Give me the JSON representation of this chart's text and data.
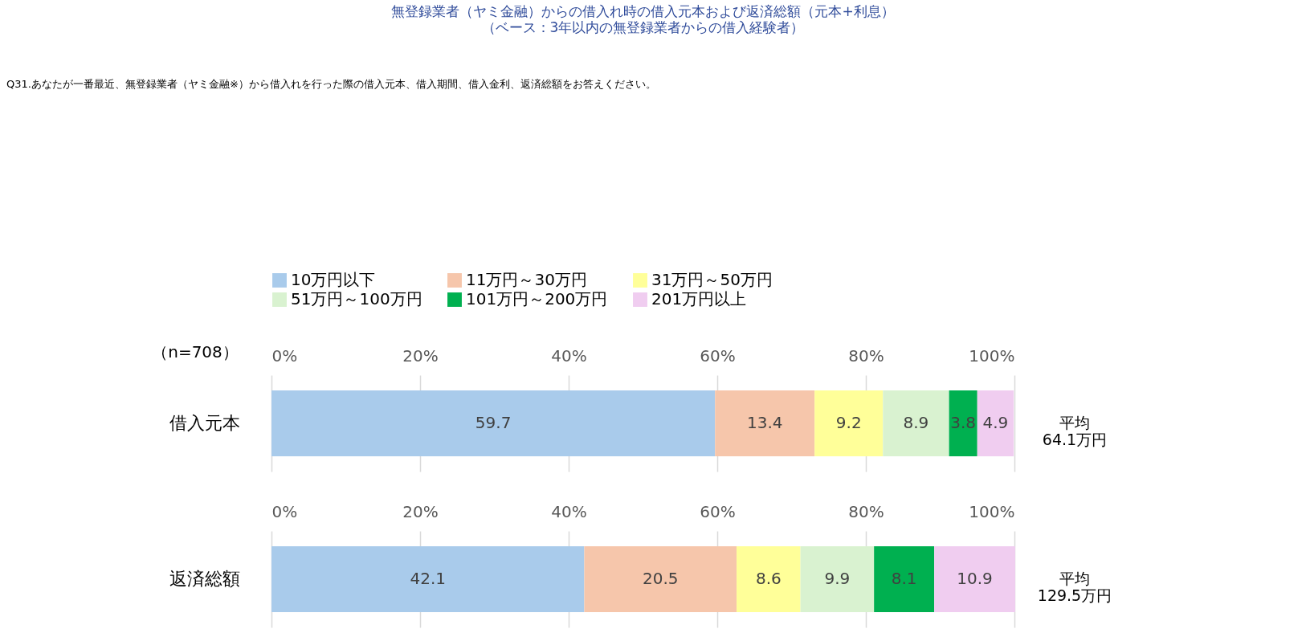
{
  "chart_data": [
    {
      "type": "bar",
      "orientation": "horizontal",
      "stacked": true,
      "title": "無登録業者（ヤミ金融）からの借入れ時の借入元本および返済総額（元本+利息）",
      "subtitle": "（ベース：3年以内の無登録業者からの借入経験者）",
      "categories": [
        "借入元本"
      ],
      "series": [
        {
          "name": "10万円以下",
          "color": "#a9cbeb",
          "values": [
            59.7
          ]
        },
        {
          "name": "11万円～30万円",
          "color": "#f6c6ab",
          "values": [
            13.4
          ]
        },
        {
          "name": "31万円～50万円",
          "color": "#ffff99",
          "values": [
            9.2
          ]
        },
        {
          "name": "51万円～100万円",
          "color": "#d9f2d0",
          "values": [
            8.9
          ]
        },
        {
          "name": "101万円～200万円",
          "color": "#00b050",
          "values": [
            3.8
          ]
        },
        {
          "name": "201万円以上",
          "color": "#f0cdf0",
          "values": [
            4.9
          ]
        }
      ],
      "xlim": [
        0,
        100
      ],
      "xticks": [
        {
          "value": 0,
          "label": "0%"
        },
        {
          "value": 20,
          "label": "20%"
        },
        {
          "value": 40,
          "label": "40%"
        },
        {
          "value": 60,
          "label": "60%"
        },
        {
          "value": 80,
          "label": "80%"
        },
        {
          "value": 100,
          "label": "100%"
        }
      ],
      "grid": "x",
      "legend": "top",
      "data_labels": true,
      "annotations": [
        "Q31.あなたが一番最近、無登録業者（ヤミ金融※）から借入れを行った際の借入元本、借入期間、借入金利、返済総額をお答えください。",
        "（n=708）",
        "平均\n64.1万円"
      ]
    },
    {
      "type": "bar",
      "orientation": "horizontal",
      "stacked": true,
      "categories": [
        "返済総額"
      ],
      "series": [
        {
          "color": "#a9cbeb",
          "values": [
            42.1
          ]
        },
        {
          "color": "#f6c6ab",
          "values": [
            20.5
          ]
        },
        {
          "color": "#ffff99",
          "values": [
            8.6
          ]
        },
        {
          "color": "#d9f2d0",
          "values": [
            9.9
          ]
        },
        {
          "color": "#00b050",
          "values": [
            8.1
          ]
        },
        {
          "color": "#f0cdf0",
          "values": [
            10.9
          ]
        }
      ],
      "xlim": [
        0,
        100
      ],
      "xticks": [
        {
          "value": 0,
          "label": "0%"
        },
        {
          "value": 20,
          "label": "20%"
        },
        {
          "value": 40,
          "label": "40%"
        },
        {
          "value": 60,
          "label": "60%"
        },
        {
          "value": 80,
          "label": "80%"
        },
        {
          "value": 100,
          "label": "100%"
        }
      ],
      "grid": "x",
      "legend": false,
      "data_labels": true,
      "annotations": [
        "平均\n129.5万円"
      ]
    }
  ]
}
